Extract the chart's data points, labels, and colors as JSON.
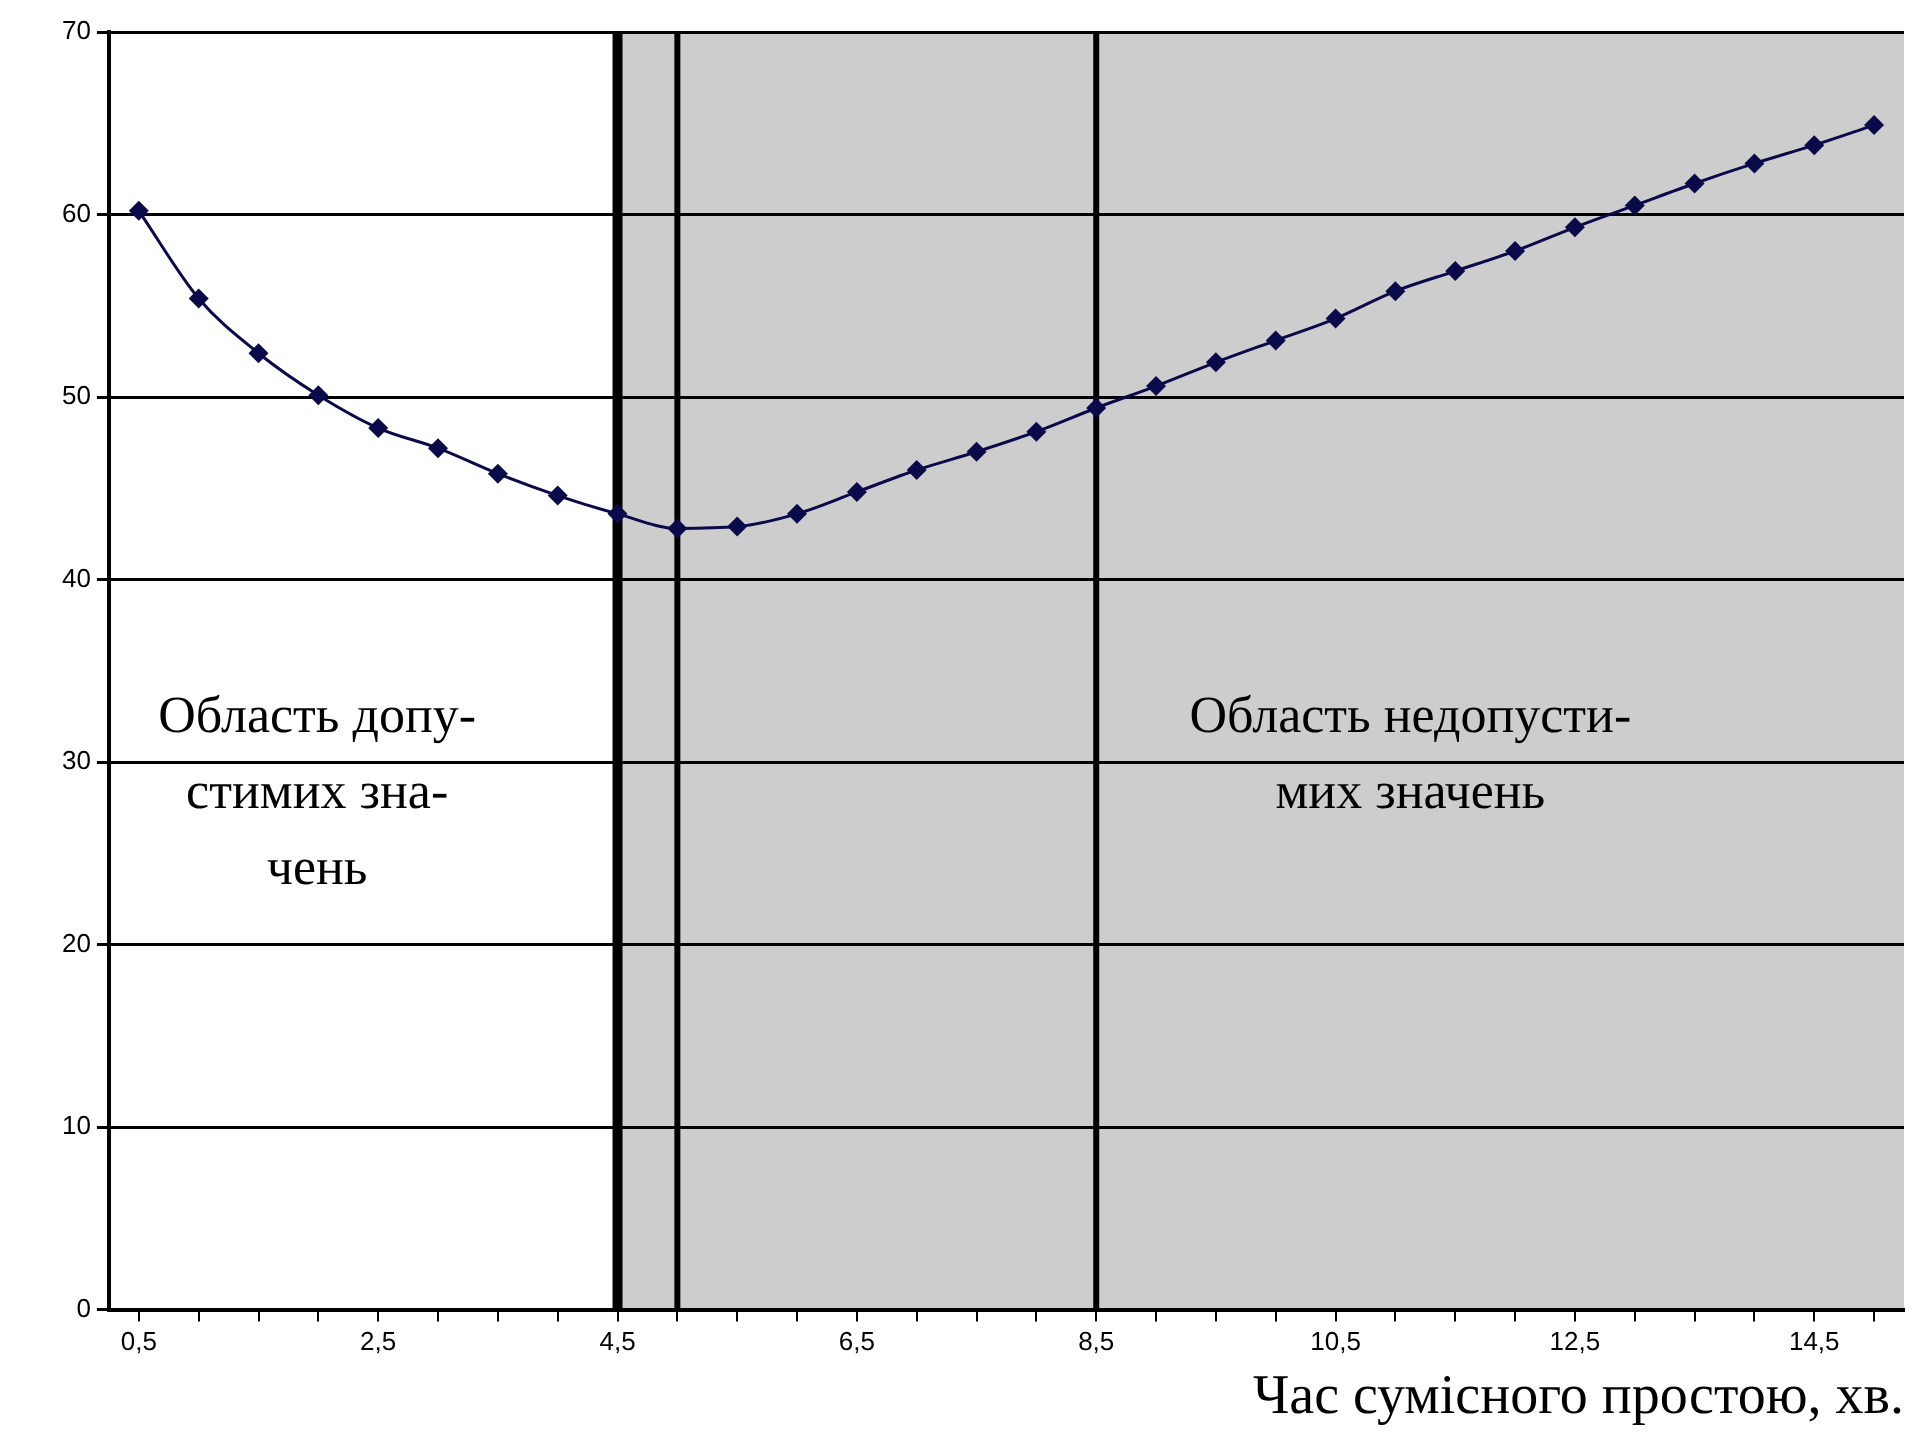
{
  "chart_data": {
    "type": "line",
    "xlabel": "Час сумісного простою, хв.",
    "x": [
      0.5,
      1,
      1.5,
      2,
      2.5,
      3,
      3.5,
      4,
      4.5,
      5,
      5.5,
      6,
      6.5,
      7,
      7.5,
      8,
      8.5,
      9,
      9.5,
      10,
      10.5,
      11,
      11.5,
      12,
      12.5,
      13,
      13.5,
      14,
      14.5,
      15
    ],
    "series": [
      {
        "color": "#0a0a4a",
        "values": [
          60.2,
          55.4,
          52.4,
          50.1,
          48.3,
          47.2,
          45.8,
          44.6,
          43.6,
          42.8,
          42.9,
          43.6,
          44.8,
          46.0,
          47.0,
          48.1,
          49.4,
          50.6,
          51.9,
          53.1,
          54.3,
          55.8,
          56.9,
          58.0,
          59.3,
          60.5,
          61.7,
          62.8,
          63.8,
          64.9
        ]
      }
    ],
    "xlim": [
      0.25,
      15.25
    ],
    "xticks": [
      {
        "value": 0.5,
        "label": "0,5"
      },
      {
        "value": 1,
        "label": null
      },
      {
        "value": 1.5,
        "label": null
      },
      {
        "value": 2,
        "label": null
      },
      {
        "value": 2.5,
        "label": "2,5"
      },
      {
        "value": 3,
        "label": null
      },
      {
        "value": 3.5,
        "label": null
      },
      {
        "value": 4,
        "label": null
      },
      {
        "value": 4.5,
        "label": "4,5"
      },
      {
        "value": 5,
        "label": null
      },
      {
        "value": 5.5,
        "label": null
      },
      {
        "value": 6,
        "label": null
      },
      {
        "value": 6.5,
        "label": "6,5"
      },
      {
        "value": 7,
        "label": null
      },
      {
        "value": 7.5,
        "label": null
      },
      {
        "value": 8,
        "label": null
      },
      {
        "value": 8.5,
        "label": "8,5"
      },
      {
        "value": 9,
        "label": null
      },
      {
        "value": 9.5,
        "label": null
      },
      {
        "value": 10,
        "label": null
      },
      {
        "value": 10.5,
        "label": "10,5"
      },
      {
        "value": 11,
        "label": null
      },
      {
        "value": 11.5,
        "label": null
      },
      {
        "value": 12,
        "label": null
      },
      {
        "value": 12.5,
        "label": "12,5"
      },
      {
        "value": 13,
        "label": null
      },
      {
        "value": 13.5,
        "label": null
      },
      {
        "value": 14,
        "label": null
      },
      {
        "value": 14.5,
        "label": "14,5"
      },
      {
        "value": 15,
        "label": null
      }
    ],
    "ylim": [
      0,
      70
    ],
    "yticks": [
      0,
      10,
      20,
      30,
      40,
      50,
      60,
      70
    ],
    "grid": "y",
    "marker": "diamond",
    "line_style": "solid",
    "legend": false,
    "bands": [
      {
        "axis": "x",
        "from": 4.5,
        "to": 15.25,
        "color": "#cdcdcd"
      }
    ],
    "ref_lines": [
      {
        "axis": "x",
        "value": 4.5
      },
      {
        "axis": "x",
        "value": 5
      },
      {
        "axis": "x",
        "value": 8.5
      }
    ],
    "annotations": [
      "Область допу-\nстимих зна-\nчень",
      "Область недопусти-\nмих значень"
    ]
  }
}
